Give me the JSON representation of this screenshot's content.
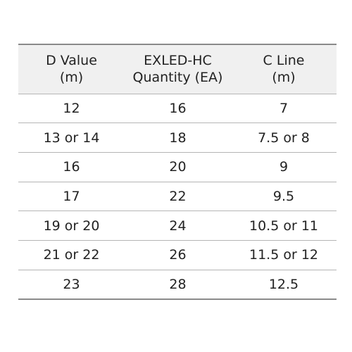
{
  "table": {
    "headers": [
      {
        "line1": "D Value",
        "line2": "(m)"
      },
      {
        "line1": "EXLED-HC",
        "line2": "Quantity (EA)"
      },
      {
        "line1": "C Line",
        "line2": "(m)"
      }
    ],
    "rows": [
      [
        "12",
        "16",
        "7"
      ],
      [
        "13 or 14",
        "18",
        "7.5 or 8"
      ],
      [
        "16",
        "20",
        "9"
      ],
      [
        "17",
        "22",
        "9.5"
      ],
      [
        "19 or 20",
        "24",
        "10.5 or 11"
      ],
      [
        "21 or 22",
        "26",
        "11.5 or 12"
      ],
      [
        "23",
        "28",
        "12.5"
      ]
    ]
  },
  "colors": {
    "header_bg": "#f0f0f0",
    "rule": "#b5b5b5",
    "strong_rule": "#8a8a8a",
    "text": "#222222"
  }
}
